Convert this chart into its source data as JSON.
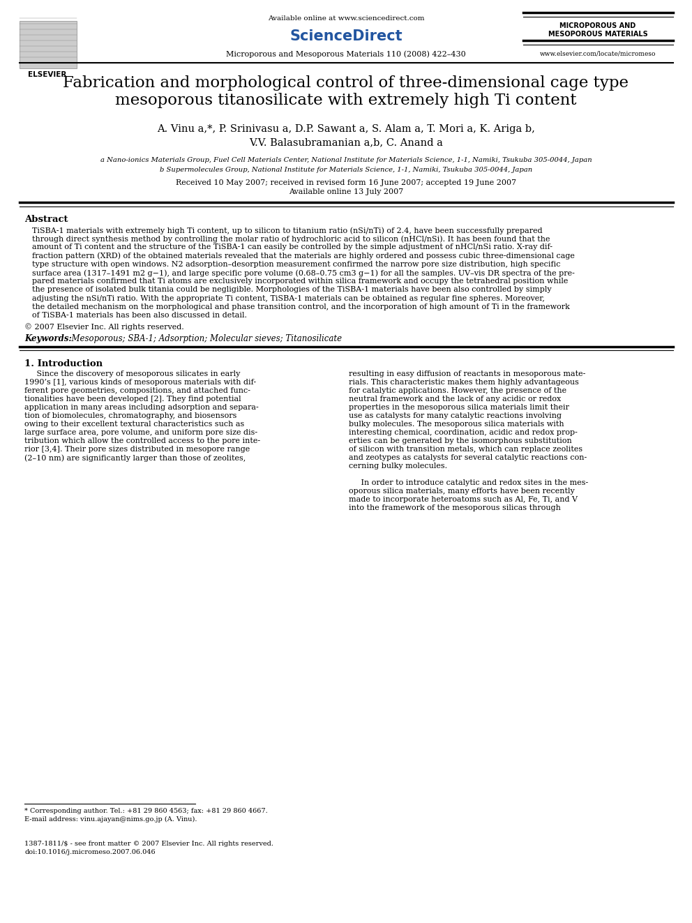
{
  "page_width": 9.92,
  "page_height": 13.23,
  "bg_color": "#ffffff",
  "avail_online": "Available online at www.sciencedirect.com",
  "sciencedirect": "ScienceDirect",
  "journal_info": "Microporous and Mesoporous Materials 110 (2008) 422–430",
  "journal_abbrev_line1": "MICROPOROUS AND",
  "journal_abbrev_line2": "MESOPOROUS MATERIALS",
  "website": "www.elsevier.com/locate/micromeso",
  "elsevier": "ELSEVIER",
  "title_line1": "Fabrication and morphological control of three-dimensional cage type",
  "title_line2": "mesoporous titanosilicate with extremely high Ti content",
  "authors_line1": "A. Vinu a,*, P. Srinivasu a, D.P. Sawant a, S. Alam a, T. Mori a, K. Ariga b,",
  "authors_line2": "V.V. Balasubramanian a,b, C. Anand a",
  "affil_a": "a Nano-ionics Materials Group, Fuel Cell Materials Center, National Institute for Materials Science, 1-1, Namiki, Tsukuba 305-0044, Japan",
  "affil_b": "b Supermolecules Group, National Institute for Materials Science, 1-1, Namiki, Tsukuba 305-0044, Japan",
  "received": "Received 10 May 2007; received in revised form 16 June 2007; accepted 19 June 2007",
  "available": "Available online 13 July 2007",
  "abstract_heading": "Abstract",
  "abstract_text1": "TiSBA-1 materials with extremely high Ti content, up to silicon to titanium ratio (nSi/nTi) of 2.4, have been successfully prepared",
  "abstract_text2": "through direct synthesis method by controlling the molar ratio of hydrochloric acid to silicon (nHCl/nSi). It has been found that the",
  "abstract_text3": "amount of Ti content and the structure of the TiSBA-1 can easily be controlled by the simple adjustment of nHCl/nSi ratio. X-ray dif-",
  "abstract_text4": "fraction pattern (XRD) of the obtained materials revealed that the materials are highly ordered and possess cubic three-dimensional cage",
  "abstract_text5": "type structure with open windows. N2 adsorption–desorption measurement confirmed the narrow pore size distribution, high specific",
  "abstract_text6": "surface area (1317–1491 m2 g−1), and large specific pore volume (0.68–0.75 cm3 g−1) for all the samples. UV–vis DR spectra of the pre-",
  "abstract_text7": "pared materials confirmed that Ti atoms are exclusively incorporated within silica framework and occupy the tetrahedral position while",
  "abstract_text8": "the presence of isolated bulk titania could be negligible. Morphologies of the TiSBA-1 materials have been also controlled by simply",
  "abstract_text9": "adjusting the nSi/nTi ratio. With the appropriate Ti content, TiSBA-1 materials can be obtained as regular fine spheres. Moreover,",
  "abstract_text10": "the detailed mechanism on the morphological and phase transition control, and the incorporation of high amount of Ti in the framework",
  "abstract_text11": "of TiSBA-1 materials has been also discussed in detail.",
  "copyright": "© 2007 Elsevier Inc. All rights reserved.",
  "keywords_label": "Keywords:",
  "keywords": "  Mesoporous; SBA-1; Adsorption; Molecular sieves; Titanosilicate",
  "intro_heading": "1. Introduction",
  "intro_c1_lines": [
    "     Since the discovery of mesoporous silicates in early",
    "1990’s [1], various kinds of mesoporous materials with dif-",
    "ferent pore geometries, compositions, and attached func-",
    "tionalities have been developed [2]. They find potential",
    "application in many areas including adsorption and separa-",
    "tion of biomolecules, chromatography, and biosensors",
    "owing to their excellent textural characteristics such as",
    "large surface area, pore volume, and uniform pore size dis-",
    "tribution which allow the controlled access to the pore inte-",
    "rior [3,4]. Their pore sizes distributed in mesopore range",
    "(2–10 nm) are significantly larger than those of zeolites,"
  ],
  "intro_c2_lines": [
    "resulting in easy diffusion of reactants in mesoporous mate-",
    "rials. This characteristic makes them highly advantageous",
    "for catalytic applications. However, the presence of the",
    "neutral framework and the lack of any acidic or redox",
    "properties in the mesoporous silica materials limit their",
    "use as catalysts for many catalytic reactions involving",
    "bulky molecules. The mesoporous silica materials with",
    "interesting chemical, coordination, acidic and redox prop-",
    "erties can be generated by the isomorphous substitution",
    "of silicon with transition metals, which can replace zeolites",
    "and zeotypes as catalysts for several catalytic reactions con-",
    "cerning bulky molecules.",
    "",
    "     In order to introduce catalytic and redox sites in the mes-",
    "oporous silica materials, many efforts have been recently",
    "made to incorporate heteroatoms such as Al, Fe, Ti, and V",
    "into the framework of the mesoporous silicas through"
  ],
  "footnote_star": "* Corresponding author. Tel.: +81 29 860 4563; fax: +81 29 860 4667.",
  "footnote_email": "E-mail address: vinu.ajayan@nims.go.jp (A. Vinu).",
  "footer_issn": "1387-1811/$ - see front matter © 2007 Elsevier Inc. All rights reserved.",
  "footer_doi": "doi:10.1016/j.micromeso.2007.06.046"
}
